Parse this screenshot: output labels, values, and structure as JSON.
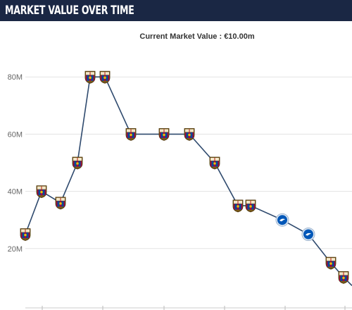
{
  "header": {
    "title": "MARKET VALUE OVER TIME"
  },
  "chart_data": {
    "type": "line",
    "subtitle": "Current Market Value : €10.00m",
    "ylim": [
      0,
      90
    ],
    "yticks": [
      {
        "value": 20,
        "label": "20M"
      },
      {
        "value": 40,
        "label": "40M"
      },
      {
        "value": 60,
        "label": "60M"
      },
      {
        "value": 80,
        "label": "80M"
      }
    ],
    "grid": true,
    "line_color": "#2f4a6e",
    "series": [
      {
        "points": [
          {
            "club": "FC Barcelona",
            "value": 25
          },
          {
            "club": "FC Barcelona",
            "value": 40
          },
          {
            "club": "FC Barcelona",
            "value": 36
          },
          {
            "club": "FC Barcelona",
            "value": 50
          },
          {
            "club": "FC Barcelona",
            "value": 80
          },
          {
            "club": "FC Barcelona",
            "value": 80
          },
          {
            "club": "FC Barcelona",
            "value": 60
          },
          {
            "club": "FC Barcelona",
            "value": 60
          },
          {
            "club": "FC Barcelona",
            "value": 60
          },
          {
            "club": "FC Barcelona",
            "value": 50
          },
          {
            "club": "FC Barcelona",
            "value": 35
          },
          {
            "club": "FC Barcelona",
            "value": 35
          },
          {
            "club": "Brighton",
            "value": 30
          },
          {
            "club": "Brighton",
            "value": 25
          },
          {
            "club": "FC Barcelona",
            "value": 15
          },
          {
            "club": "FC Barcelona",
            "value": 10
          }
        ]
      }
    ],
    "club_colors": {
      "FC Barcelona": {
        "primary": "#a50044",
        "secondary": "#004d98",
        "accent": "#edbb00"
      },
      "Brighton": {
        "primary": "#0057b8",
        "secondary": "#ffffff"
      }
    }
  }
}
